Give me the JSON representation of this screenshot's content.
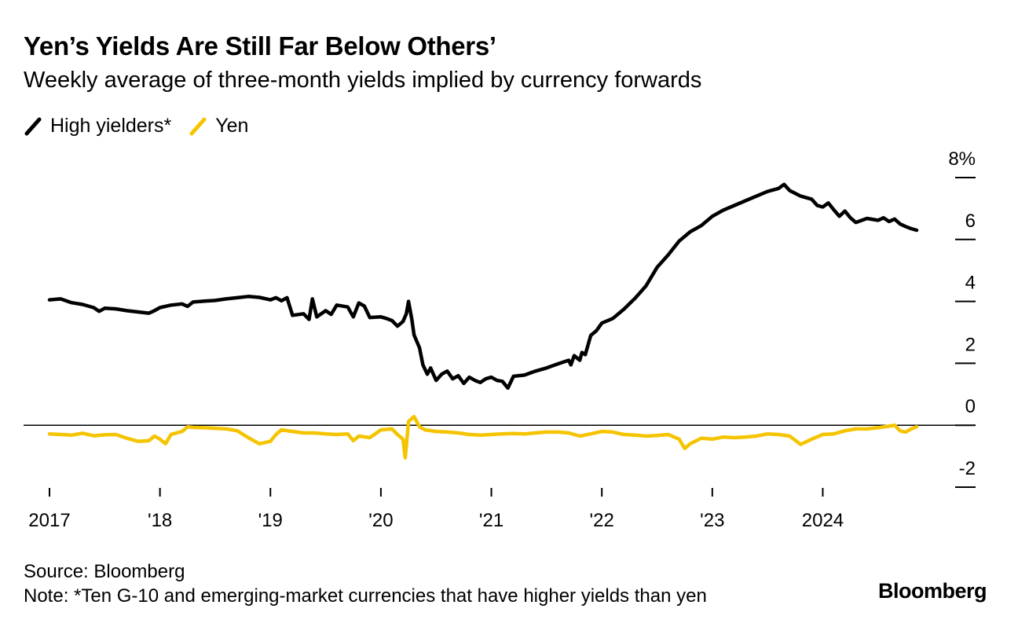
{
  "title": "Yen’s Yields Are Still Far Below Others’",
  "subtitle": "Weekly average of three-month yields implied by currency forwards",
  "legend": [
    {
      "name": "High yielders*",
      "color": "#000000"
    },
    {
      "name": "Yen",
      "color": "#F5C400"
    }
  ],
  "source": "Source: Bloomberg",
  "note": "Note: *Ten G-10 and emerging-market currencies that have higher yields than yen",
  "brand": "Bloomberg",
  "chart_data": {
    "type": "line",
    "title": "Yen’s Yields Are Still Far Below Others’",
    "xlabel": "",
    "ylabel": "%",
    "xlim": [
      2017.0,
      2024.85
    ],
    "ylim": [
      -2,
      8
    ],
    "x_ticks": [
      2017,
      2018,
      2019,
      2020,
      2021,
      2022,
      2023,
      2024
    ],
    "x_tick_labels": [
      "2017",
      "'18",
      "'19",
      "'20",
      "'21",
      "'22",
      "'23",
      "2024"
    ],
    "y_ticks": [
      -2,
      0,
      2,
      4,
      6,
      8
    ],
    "y_tick_labels": [
      "-2",
      "0",
      "2",
      "4",
      "6",
      "8%"
    ],
    "zero_line": true,
    "series": [
      {
        "name": "High yielders*",
        "color": "#000000",
        "points": [
          [
            2017.0,
            4.05
          ],
          [
            2017.1,
            4.08
          ],
          [
            2017.2,
            3.96
          ],
          [
            2017.3,
            3.9
          ],
          [
            2017.4,
            3.8
          ],
          [
            2017.45,
            3.68
          ],
          [
            2017.5,
            3.78
          ],
          [
            2017.6,
            3.76
          ],
          [
            2017.7,
            3.7
          ],
          [
            2017.8,
            3.66
          ],
          [
            2017.9,
            3.62
          ],
          [
            2017.95,
            3.7
          ],
          [
            2018.0,
            3.8
          ],
          [
            2018.1,
            3.88
          ],
          [
            2018.2,
            3.92
          ],
          [
            2018.25,
            3.84
          ],
          [
            2018.3,
            3.98
          ],
          [
            2018.4,
            4.01
          ],
          [
            2018.5,
            4.03
          ],
          [
            2018.6,
            4.08
          ],
          [
            2018.7,
            4.12
          ],
          [
            2018.8,
            4.16
          ],
          [
            2018.9,
            4.13
          ],
          [
            2019.0,
            4.05
          ],
          [
            2019.05,
            4.12
          ],
          [
            2019.1,
            4.02
          ],
          [
            2019.15,
            4.12
          ],
          [
            2019.2,
            3.55
          ],
          [
            2019.3,
            3.6
          ],
          [
            2019.35,
            3.42
          ],
          [
            2019.38,
            4.08
          ],
          [
            2019.42,
            3.5
          ],
          [
            2019.5,
            3.7
          ],
          [
            2019.55,
            3.58
          ],
          [
            2019.6,
            3.88
          ],
          [
            2019.7,
            3.82
          ],
          [
            2019.75,
            3.5
          ],
          [
            2019.8,
            3.95
          ],
          [
            2019.85,
            3.85
          ],
          [
            2019.9,
            3.48
          ],
          [
            2020.0,
            3.5
          ],
          [
            2020.05,
            3.45
          ],
          [
            2020.1,
            3.38
          ],
          [
            2020.15,
            3.2
          ],
          [
            2020.2,
            3.35
          ],
          [
            2020.23,
            3.6
          ],
          [
            2020.25,
            4.0
          ],
          [
            2020.28,
            3.42
          ],
          [
            2020.3,
            2.92
          ],
          [
            2020.35,
            2.5
          ],
          [
            2020.38,
            1.95
          ],
          [
            2020.42,
            1.65
          ],
          [
            2020.45,
            1.85
          ],
          [
            2020.5,
            1.45
          ],
          [
            2020.55,
            1.65
          ],
          [
            2020.6,
            1.75
          ],
          [
            2020.65,
            1.5
          ],
          [
            2020.7,
            1.6
          ],
          [
            2020.75,
            1.35
          ],
          [
            2020.8,
            1.55
          ],
          [
            2020.85,
            1.45
          ],
          [
            2020.9,
            1.38
          ],
          [
            2020.95,
            1.5
          ],
          [
            2021.0,
            1.55
          ],
          [
            2021.05,
            1.45
          ],
          [
            2021.1,
            1.42
          ],
          [
            2021.15,
            1.2
          ],
          [
            2021.2,
            1.58
          ],
          [
            2021.3,
            1.62
          ],
          [
            2021.4,
            1.75
          ],
          [
            2021.5,
            1.85
          ],
          [
            2021.6,
            1.98
          ],
          [
            2021.7,
            2.1
          ],
          [
            2021.72,
            1.95
          ],
          [
            2021.75,
            2.25
          ],
          [
            2021.8,
            2.1
          ],
          [
            2021.82,
            2.35
          ],
          [
            2021.85,
            2.28
          ],
          [
            2021.9,
            2.9
          ],
          [
            2021.95,
            3.05
          ],
          [
            2022.0,
            3.3
          ],
          [
            2022.1,
            3.45
          ],
          [
            2022.2,
            3.75
          ],
          [
            2022.3,
            4.1
          ],
          [
            2022.4,
            4.5
          ],
          [
            2022.5,
            5.1
          ],
          [
            2022.6,
            5.5
          ],
          [
            2022.7,
            5.95
          ],
          [
            2022.8,
            6.25
          ],
          [
            2022.9,
            6.45
          ],
          [
            2023.0,
            6.75
          ],
          [
            2023.1,
            6.95
          ],
          [
            2023.2,
            7.1
          ],
          [
            2023.3,
            7.25
          ],
          [
            2023.4,
            7.4
          ],
          [
            2023.5,
            7.55
          ],
          [
            2023.6,
            7.65
          ],
          [
            2023.65,
            7.78
          ],
          [
            2023.7,
            7.58
          ],
          [
            2023.8,
            7.4
          ],
          [
            2023.9,
            7.3
          ],
          [
            2023.95,
            7.1
          ],
          [
            2024.0,
            7.05
          ],
          [
            2024.05,
            7.18
          ],
          [
            2024.1,
            6.96
          ],
          [
            2024.15,
            6.75
          ],
          [
            2024.2,
            6.92
          ],
          [
            2024.25,
            6.7
          ],
          [
            2024.3,
            6.55
          ],
          [
            2024.4,
            6.68
          ],
          [
            2024.5,
            6.62
          ],
          [
            2024.55,
            6.7
          ],
          [
            2024.6,
            6.58
          ],
          [
            2024.65,
            6.66
          ],
          [
            2024.7,
            6.5
          ],
          [
            2024.75,
            6.42
          ],
          [
            2024.8,
            6.35
          ],
          [
            2024.85,
            6.3
          ]
        ]
      },
      {
        "name": "Yen",
        "color": "#F5C400",
        "points": [
          [
            2017.0,
            -0.28
          ],
          [
            2017.1,
            -0.3
          ],
          [
            2017.2,
            -0.32
          ],
          [
            2017.3,
            -0.26
          ],
          [
            2017.4,
            -0.34
          ],
          [
            2017.5,
            -0.31
          ],
          [
            2017.6,
            -0.3
          ],
          [
            2017.7,
            -0.42
          ],
          [
            2017.8,
            -0.52
          ],
          [
            2017.9,
            -0.5
          ],
          [
            2017.95,
            -0.35
          ],
          [
            2018.0,
            -0.45
          ],
          [
            2018.05,
            -0.6
          ],
          [
            2018.1,
            -0.3
          ],
          [
            2018.2,
            -0.2
          ],
          [
            2018.25,
            -0.05
          ],
          [
            2018.3,
            -0.07
          ],
          [
            2018.4,
            -0.08
          ],
          [
            2018.5,
            -0.1
          ],
          [
            2018.6,
            -0.12
          ],
          [
            2018.7,
            -0.18
          ],
          [
            2018.8,
            -0.4
          ],
          [
            2018.9,
            -0.6
          ],
          [
            2019.0,
            -0.52
          ],
          [
            2019.05,
            -0.3
          ],
          [
            2019.1,
            -0.15
          ],
          [
            2019.2,
            -0.2
          ],
          [
            2019.3,
            -0.25
          ],
          [
            2019.4,
            -0.25
          ],
          [
            2019.5,
            -0.28
          ],
          [
            2019.6,
            -0.3
          ],
          [
            2019.7,
            -0.28
          ],
          [
            2019.75,
            -0.5
          ],
          [
            2019.8,
            -0.35
          ],
          [
            2019.9,
            -0.4
          ],
          [
            2020.0,
            -0.15
          ],
          [
            2020.1,
            -0.12
          ],
          [
            2020.15,
            -0.3
          ],
          [
            2020.2,
            -0.45
          ],
          [
            2020.22,
            -1.05
          ],
          [
            2020.25,
            0.12
          ],
          [
            2020.3,
            0.28
          ],
          [
            2020.35,
            -0.05
          ],
          [
            2020.4,
            -0.15
          ],
          [
            2020.5,
            -0.2
          ],
          [
            2020.6,
            -0.22
          ],
          [
            2020.7,
            -0.25
          ],
          [
            2020.8,
            -0.3
          ],
          [
            2020.9,
            -0.32
          ],
          [
            2021.0,
            -0.3
          ],
          [
            2021.1,
            -0.28
          ],
          [
            2021.2,
            -0.27
          ],
          [
            2021.3,
            -0.28
          ],
          [
            2021.4,
            -0.25
          ],
          [
            2021.5,
            -0.22
          ],
          [
            2021.6,
            -0.22
          ],
          [
            2021.7,
            -0.25
          ],
          [
            2021.8,
            -0.35
          ],
          [
            2021.9,
            -0.28
          ],
          [
            2022.0,
            -0.2
          ],
          [
            2022.1,
            -0.22
          ],
          [
            2022.2,
            -0.3
          ],
          [
            2022.3,
            -0.32
          ],
          [
            2022.4,
            -0.35
          ],
          [
            2022.5,
            -0.33
          ],
          [
            2022.6,
            -0.3
          ],
          [
            2022.7,
            -0.45
          ],
          [
            2022.75,
            -0.75
          ],
          [
            2022.8,
            -0.6
          ],
          [
            2022.9,
            -0.42
          ],
          [
            2023.0,
            -0.45
          ],
          [
            2023.1,
            -0.38
          ],
          [
            2023.2,
            -0.4
          ],
          [
            2023.3,
            -0.38
          ],
          [
            2023.4,
            -0.35
          ],
          [
            2023.5,
            -0.28
          ],
          [
            2023.6,
            -0.3
          ],
          [
            2023.7,
            -0.35
          ],
          [
            2023.8,
            -0.62
          ],
          [
            2023.9,
            -0.45
          ],
          [
            2024.0,
            -0.3
          ],
          [
            2024.1,
            -0.28
          ],
          [
            2024.2,
            -0.18
          ],
          [
            2024.3,
            -0.12
          ],
          [
            2024.4,
            -0.12
          ],
          [
            2024.5,
            -0.08
          ],
          [
            2024.6,
            -0.03
          ],
          [
            2024.65,
            0.0
          ],
          [
            2024.7,
            -0.18
          ],
          [
            2024.75,
            -0.22
          ],
          [
            2024.8,
            -0.12
          ],
          [
            2024.85,
            -0.05
          ]
        ]
      }
    ]
  }
}
